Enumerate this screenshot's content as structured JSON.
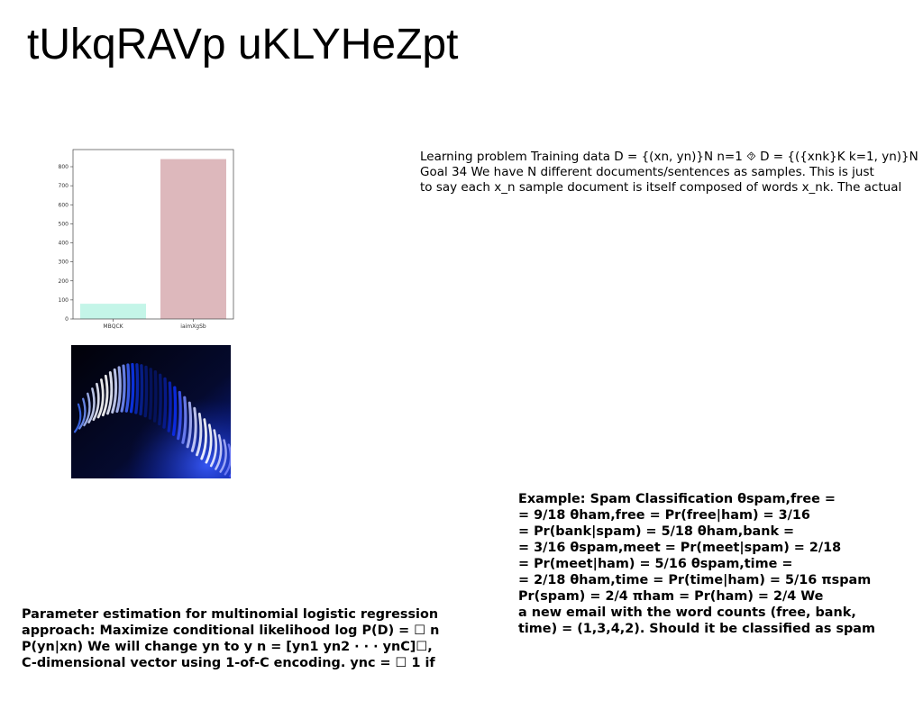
{
  "title": "tUkqRAVp uKLYHeZpt",
  "chart_data": {
    "type": "bar",
    "categories": [
      "MBQCK",
      "iaimXgSb"
    ],
    "values": [
      80,
      840
    ],
    "ylim": [
      0,
      890
    ],
    "yticks": [
      0,
      100,
      200,
      300,
      400,
      500,
      600,
      700,
      800
    ],
    "title": "",
    "xlabel": "",
    "ylabel": "",
    "colors": [
      "#c4f5e8",
      "#ddb8bc"
    ],
    "grid": false
  },
  "photo": {
    "subject": "abstract-blue-wave-image"
  },
  "text_top": {
    "lines": [
      "Learning problem Training data D = {(xn, yn)}N n=1 ⯑ D = {({xnk}K k=1, yn)}N",
      "Goal 34 We have N different documents/sentences as samples. This is just",
      "to say each x_n sample document is itself composed of words x_nk. The actual"
    ]
  },
  "text_right": {
    "lines": [
      "Example: Spam Classification θspam,free =",
      "= 9/18 θham,free = Pr(free|ham) = 3/16",
      "= Pr(bank|spam) = 5/18 θham,bank =",
      "= 3/16 θspam,meet = Pr(meet|spam) = 2/18",
      "= Pr(meet|ham) = 5/16 θspam,time =",
      "= 2/18 θham,time = Pr(time|ham) = 5/16 πspam",
      "Pr(spam) = 2/4 πham = Pr(ham) = 2/4 We",
      "a new email with the word counts (free, bank,",
      "time) = (1,3,4,2). Should it be classified as spam"
    ]
  },
  "text_left": {
    "lines": [
      "Parameter estimation for multinomial logistic regression",
      "approach: Maximize conditional likelihood log P(D) = ☐ n",
      "P(yn|xn) We will change yn to y n = [yn1 yn2 · · · ynC]☐,",
      "C-dimensional vector using 1-of-C encoding. ync = ☐ 1 if"
    ]
  }
}
